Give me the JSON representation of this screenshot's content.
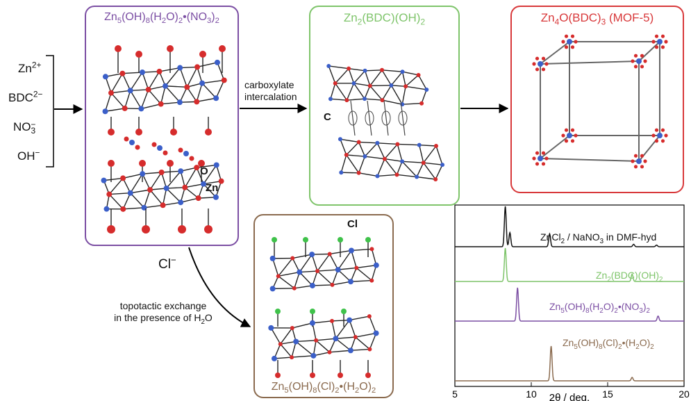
{
  "reagents": {
    "zn": {
      "base": "Zn",
      "sup": "2+"
    },
    "bdc": {
      "base": "BDC",
      "sup": "2−"
    },
    "no3": {
      "base": "NO",
      "sub": "3",
      "sup": "−"
    },
    "oh": {
      "base": "OH",
      "sup": "−"
    }
  },
  "boxes": {
    "lhs": {
      "color": "#7b4ea3",
      "title": [
        "Zn",
        {
          "sub": "5"
        },
        "(OH)",
        {
          "sub": "8"
        },
        "(H",
        {
          "sub": "2"
        },
        "O)",
        {
          "sub": "2"
        },
        "•(NO",
        {
          "sub": "3"
        },
        ")",
        {
          "sub": "2"
        }
      ],
      "label_o": "O",
      "label_zn": "Zn"
    },
    "bdc": {
      "color": "#7ec46a",
      "title": [
        "Zn",
        {
          "sub": "2"
        },
        "(BDC)(OH)",
        {
          "sub": "2"
        }
      ],
      "label_c": "C"
    },
    "mof": {
      "color": "#d8383a",
      "title": [
        "Zn",
        {
          "sub": "4"
        },
        "O(BDC)",
        {
          "sub": "3"
        },
        " (MOF-5)"
      ]
    },
    "cl": {
      "color": "#8a6a4e",
      "title": [
        "Zn",
        {
          "sub": "5"
        },
        "(OH)",
        {
          "sub": "8"
        },
        "(Cl)",
        {
          "sub": "2"
        },
        "•(H",
        {
          "sub": "2"
        },
        "O)",
        {
          "sub": "2"
        }
      ],
      "label_cl": "Cl"
    }
  },
  "arrows": {
    "carboxylate_line1": "carboxylate",
    "carboxylate_line2": "intercalation",
    "cl_ion": {
      "base": "Cl",
      "sup": "−"
    },
    "topotactic_line1": "topotactic exchange",
    "topotactic_line2": [
      "in the presence of H",
      {
        "sub": "2"
      },
      "O"
    ]
  },
  "colors": {
    "zn_atom": "#3b5fc9",
    "o_atom": "#d62c2c",
    "cl_atom": "#3fc24a",
    "bond": "#222222"
  },
  "chart_data": {
    "type": "line",
    "xlabel": "2θ / deg.",
    "xlim": [
      5,
      20
    ],
    "xticks": [
      5,
      10,
      15,
      20
    ],
    "series": [
      {
        "name": "ZnCl2 / NaNO3 in DMF-hyd",
        "label": [
          "ZnCl",
          {
            "sub": "2"
          },
          " / NaNO",
          {
            "sub": "3"
          },
          " in DMF-hyd"
        ],
        "color": "#111111",
        "peaks": [
          [
            8.3,
            1.0
          ],
          [
            8.6,
            0.35
          ],
          [
            11.2,
            0.32
          ],
          [
            16.7,
            0.06
          ],
          [
            18.2,
            0.04
          ]
        ]
      },
      {
        "name": "Zn2(BDC)(OH)2",
        "label": [
          "Zn",
          {
            "sub": "2"
          },
          "(BDC)(OH)",
          {
            "sub": "2"
          }
        ],
        "color": "#7ec46a",
        "peaks": [
          [
            8.3,
            1.0
          ],
          [
            16.6,
            0.22
          ]
        ]
      },
      {
        "name": "Zn5(OH)8(H2O)2•(NO3)2",
        "label": [
          "Zn",
          {
            "sub": "5"
          },
          "(OH)",
          {
            "sub": "8"
          },
          "(H",
          {
            "sub": "2"
          },
          "O)",
          {
            "sub": "2"
          },
          "•(NO",
          {
            "sub": "3"
          },
          ")",
          {
            "sub": "2"
          }
        ],
        "color": "#7b4ea3",
        "peaks": [
          [
            9.1,
            1.0
          ],
          [
            18.3,
            0.15
          ]
        ]
      },
      {
        "name": "Zn5(OH)8(Cl)2•(H2O)2",
        "label": [
          "Zn",
          {
            "sub": "5"
          },
          "(OH)",
          {
            "sub": "8"
          },
          "(Cl)",
          {
            "sub": "2"
          },
          "•(H",
          {
            "sub": "2"
          },
          "O)",
          {
            "sub": "2"
          }
        ],
        "color": "#8a6a4e",
        "peaks": [
          [
            11.3,
            1.0
          ],
          [
            16.6,
            0.1
          ]
        ]
      }
    ]
  }
}
